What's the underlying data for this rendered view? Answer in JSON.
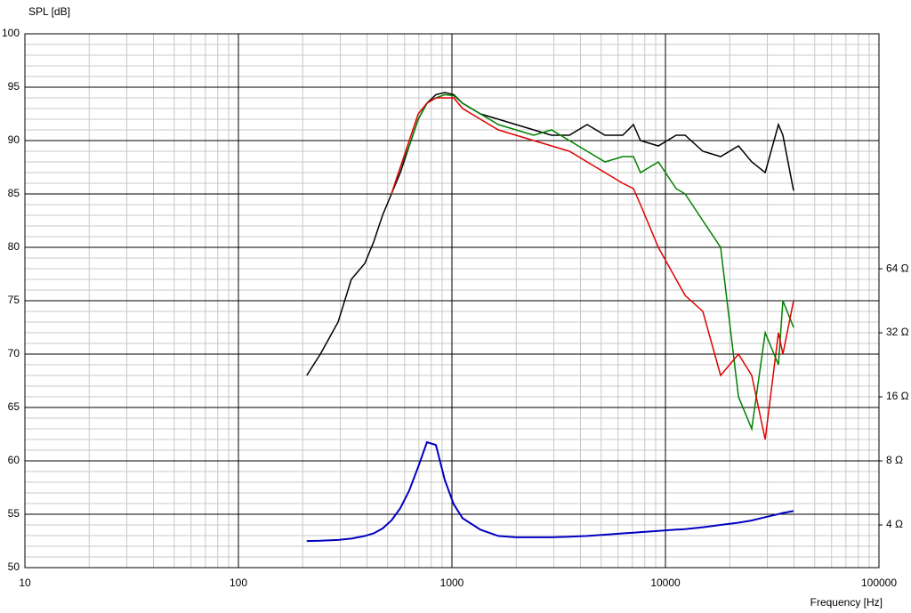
{
  "chart_data": {
    "type": "line",
    "y_label": "SPL [dB]",
    "x_label": "Frequency [Hz]",
    "xscale": "log",
    "xlim": [
      10,
      100000
    ],
    "xticks": [
      10,
      100,
      1000,
      10000,
      100000
    ],
    "ylim": [
      50,
      100
    ],
    "yticks": [
      50,
      55,
      60,
      65,
      70,
      75,
      80,
      85,
      90,
      95,
      100
    ],
    "y2scale": "log",
    "y2lim": [
      2.52,
      814
    ],
    "y2ticks": [
      {
        "value": 4,
        "label": "4 Ω"
      },
      {
        "value": 8,
        "label": "8 Ω"
      },
      {
        "value": 16,
        "label": "16 Ω"
      },
      {
        "value": 32,
        "label": "32 Ω"
      },
      {
        "value": 64,
        "label": "64 Ω"
      }
    ],
    "grid": true,
    "x": [
      209,
      242,
      293,
      338,
      391,
      430,
      473,
      521,
      573,
      631,
      695,
      764,
      841,
      926,
      1019,
      1122,
      1359,
      1648,
      1995,
      2416,
      2929,
      3548,
      4298,
      5209,
      6310,
      7079,
      7640,
      9261,
      11220,
      12360,
      14960,
      18130,
      21980,
      25360,
      29310,
      33810,
      35480,
      39810
    ],
    "series": [
      {
        "color": "#000000",
        "values": [
          68,
          70,
          73,
          77,
          78.5,
          80.5,
          83,
          85,
          87,
          89.5,
          92,
          93.5,
          94.3,
          94.5,
          94.3,
          93.5,
          92.5,
          92,
          91.5,
          91,
          90.5,
          90.5,
          91.5,
          90.5,
          90.5,
          91.5,
          90,
          89.5,
          90.5,
          90.5,
          89,
          88.5,
          89.5,
          88,
          87,
          91.5,
          90.5,
          85.3
        ]
      },
      {
        "color": "#008000",
        "values": [
          null,
          null,
          null,
          null,
          null,
          null,
          null,
          85,
          87.5,
          89.5,
          92,
          93.5,
          94,
          94.3,
          94.2,
          93.5,
          92.5,
          91.5,
          91,
          90.5,
          91,
          90,
          89,
          88,
          88.5,
          88.5,
          87,
          88,
          85.5,
          85,
          82.5,
          80,
          66,
          63,
          72,
          69,
          75,
          72.5
        ]
      },
      {
        "color": "#e00000",
        "values": [
          null,
          null,
          null,
          null,
          null,
          null,
          null,
          85,
          87.5,
          90,
          92.5,
          93.5,
          94,
          94,
          94,
          93,
          92,
          91,
          90.5,
          90,
          89.5,
          89,
          88,
          87,
          86,
          85.5,
          84,
          80,
          77,
          75.5,
          74,
          68,
          70,
          68,
          62,
          72,
          70,
          75
        ]
      },
      {
        "color": "#0000c0",
        "axis": "y2",
        "values": [
          3.36,
          3.37,
          3.4,
          3.45,
          3.55,
          3.65,
          3.85,
          4.2,
          4.8,
          5.8,
          7.5,
          9.8,
          9.5,
          6.5,
          5.0,
          4.3,
          3.8,
          3.55,
          3.5,
          3.5,
          3.5,
          3.52,
          3.55,
          3.6,
          3.65,
          3.68,
          3.7,
          3.75,
          3.8,
          3.82,
          3.9,
          4.0,
          4.1,
          4.2,
          4.35,
          4.5,
          4.55,
          4.65
        ]
      }
    ]
  }
}
